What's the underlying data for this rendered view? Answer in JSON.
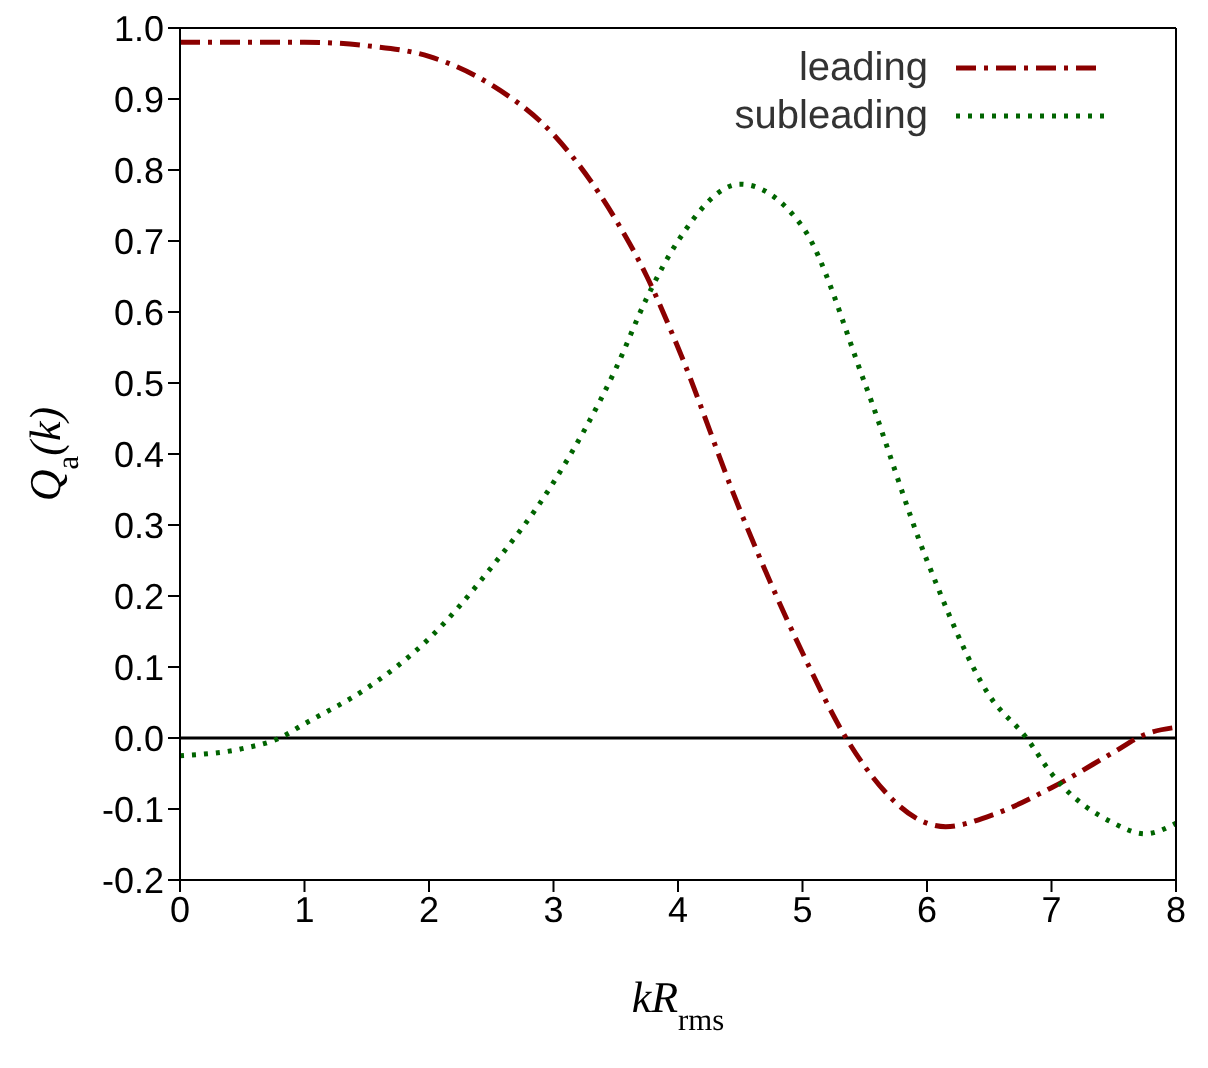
{
  "chart_data": {
    "type": "line",
    "xlabel": "kR$_{rms}$",
    "ylabel": "Q$_{a}$(k)",
    "xlim": [
      0,
      8
    ],
    "ylim": [
      -0.2,
      1.0
    ],
    "xticks": [
      0,
      1,
      2,
      3,
      4,
      5,
      6,
      7,
      8
    ],
    "yticks": [
      {
        "value": -0.2,
        "label": "-0.2"
      },
      {
        "value": -0.1,
        "label": "-0.1"
      },
      {
        "value": 0,
        "label": "0.0"
      },
      {
        "value": 0.1,
        "label": "0.1"
      },
      {
        "value": 0.2,
        "label": "0.2"
      },
      {
        "value": 0.3,
        "label": "0.3"
      },
      {
        "value": 0.4,
        "label": "0.4"
      },
      {
        "value": 0.5,
        "label": "0.5"
      },
      {
        "value": 0.6,
        "label": "0.6"
      },
      {
        "value": 0.7,
        "label": "0.7"
      },
      {
        "value": 0.8,
        "label": "0.8"
      },
      {
        "value": 0.9,
        "label": "0.9"
      },
      {
        "value": 1.0,
        "label": "1.0"
      }
    ],
    "legend": "top right",
    "marker": "none",
    "ref_lines": [
      {
        "axis": "y",
        "value": 0,
        "color": "#000000",
        "line_style": "solid"
      }
    ],
    "series": [
      {
        "name": "leading",
        "color": "#8b0000",
        "line_style": "dashed",
        "x": [
          0,
          0.5,
          1,
          1.5,
          2,
          2.5,
          3,
          3.5,
          3.75,
          4,
          4.5,
          5,
          5.35,
          5.5,
          6,
          6.15,
          6.5,
          7,
          7.5,
          7.75,
          8
        ],
        "values": [
          0.98,
          0.98,
          0.98,
          0.975,
          0.96,
          0.92,
          0.85,
          0.73,
          0.65,
          0.55,
          0.32,
          0.12,
          0,
          -0.04,
          -0.12,
          -0.125,
          -0.11,
          -0.07,
          -0.02,
          0.005,
          0.015
        ]
      },
      {
        "name": "subleading",
        "color": "#006400",
        "line_style": "dotted",
        "x": [
          0,
          0.5,
          0.8,
          1,
          1.5,
          2,
          2.5,
          3,
          3.5,
          3.75,
          4,
          4.5,
          5,
          5.5,
          6,
          6.5,
          6.8,
          7,
          7.5,
          7.75,
          8
        ],
        "values": [
          -0.025,
          -0.015,
          0,
          0.02,
          0.07,
          0.14,
          0.24,
          0.36,
          0.52,
          0.62,
          0.7,
          0.78,
          0.72,
          0.5,
          0.25,
          0.06,
          0,
          -0.05,
          -0.12,
          -0.135,
          -0.12
        ]
      }
    ]
  }
}
